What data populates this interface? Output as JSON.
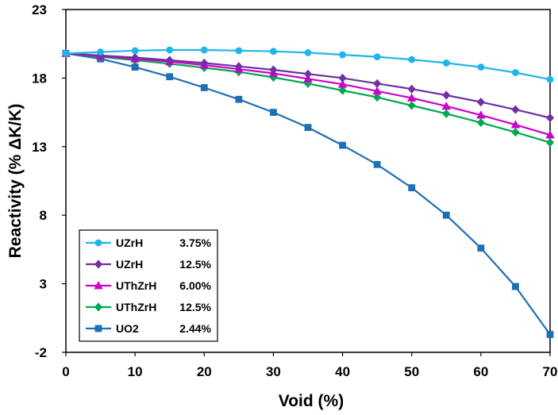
{
  "chart_data": {
    "type": "line",
    "xlabel": "Void (%)",
    "ylabel": "Reactivity (% ΔK/K)",
    "xlim": [
      0,
      70
    ],
    "ylim": [
      -2,
      23
    ],
    "xticks": [
      0,
      10,
      20,
      30,
      40,
      50,
      60,
      70
    ],
    "yticks": [
      -2,
      3,
      8,
      13,
      18,
      23
    ],
    "legend_position": "bottom-left",
    "x": [
      0,
      5,
      10,
      15,
      20,
      25,
      30,
      35,
      40,
      45,
      50,
      55,
      60,
      65,
      70
    ],
    "series": [
      {
        "name": "UZrH",
        "detail": "3.75%",
        "color": "#1FB5E8",
        "marker": "circle",
        "values": [
          19.8,
          19.9,
          20.0,
          20.05,
          20.05,
          20.0,
          19.95,
          19.85,
          19.7,
          19.55,
          19.35,
          19.1,
          18.8,
          18.4,
          17.9
        ]
      },
      {
        "name": "UZrH",
        "detail": "12.5%",
        "color": "#7030A0",
        "marker": "diamond",
        "values": [
          19.8,
          19.65,
          19.5,
          19.3,
          19.1,
          18.85,
          18.6,
          18.3,
          18.0,
          17.6,
          17.2,
          16.75,
          16.25,
          15.7,
          15.1
        ]
      },
      {
        "name": "UThZrH",
        "detail": "6.00%",
        "color": "#CC00CC",
        "marker": "triangle",
        "values": [
          19.8,
          19.6,
          19.4,
          19.2,
          18.95,
          18.65,
          18.35,
          17.95,
          17.55,
          17.05,
          16.55,
          15.95,
          15.3,
          14.6,
          13.85
        ]
      },
      {
        "name": "UThZrH",
        "detail": "12.5%",
        "color": "#00A84F",
        "marker": "diamond",
        "values": [
          19.8,
          19.55,
          19.3,
          19.05,
          18.75,
          18.45,
          18.05,
          17.6,
          17.1,
          16.6,
          16.0,
          15.4,
          14.75,
          14.05,
          13.3
        ]
      },
      {
        "name": "UO2",
        "detail": "2.44%",
        "color": "#1F6FB5",
        "marker": "square",
        "values": [
          19.8,
          19.4,
          18.8,
          18.1,
          17.3,
          16.45,
          15.5,
          14.4,
          13.1,
          11.7,
          10.0,
          8.0,
          5.6,
          2.8,
          -0.7
        ]
      }
    ]
  }
}
